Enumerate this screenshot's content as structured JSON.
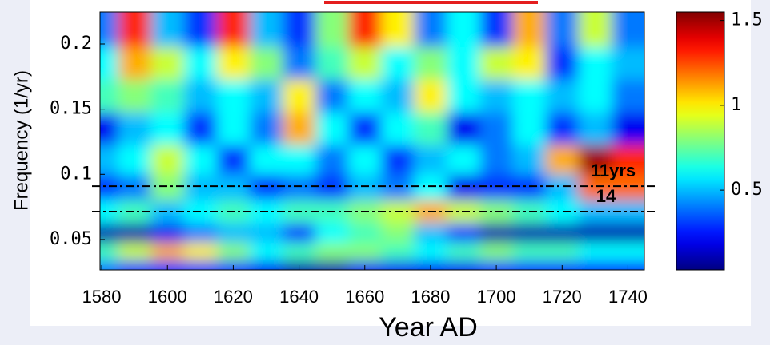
{
  "chart_data": {
    "type": "heatmap",
    "colormap": "jet",
    "xlabel": "Year AD",
    "ylabel": "Frequency  (1/yr)",
    "x": [
      1580,
      1590,
      1600,
      1610,
      1620,
      1630,
      1640,
      1650,
      1660,
      1670,
      1680,
      1690,
      1700,
      1710,
      1720,
      1730,
      1740
    ],
    "y": [
      0.21,
      0.185,
      0.16,
      0.135,
      0.11,
      0.09,
      0.07,
      0.055,
      0.04,
      0.028
    ],
    "z": [
      [
        0.4,
        1.3,
        0.5,
        0.3,
        1.3,
        0.5,
        0.3,
        0.8,
        1.3,
        1.0,
        0.4,
        0.6,
        0.3,
        1.1,
        0.4,
        0.9,
        0.4
      ],
      [
        0.6,
        1.1,
        0.9,
        0.6,
        1.0,
        0.8,
        0.4,
        0.7,
        0.9,
        0.6,
        0.8,
        0.6,
        0.9,
        1.0,
        0.3,
        0.6,
        0.5
      ],
      [
        0.7,
        0.8,
        0.7,
        0.5,
        0.6,
        0.5,
        1.0,
        0.4,
        0.6,
        0.5,
        1.0,
        0.6,
        0.5,
        0.6,
        0.5,
        0.6,
        0.4
      ],
      [
        0.2,
        0.5,
        0.6,
        0.3,
        0.6,
        0.4,
        1.1,
        0.6,
        0.3,
        0.6,
        0.7,
        0.2,
        0.4,
        0.6,
        0.3,
        0.5,
        0.2
      ],
      [
        0.5,
        0.6,
        0.9,
        0.6,
        0.3,
        0.6,
        0.6,
        0.4,
        0.6,
        0.3,
        0.5,
        0.6,
        0.4,
        0.5,
        1.1,
        1.5,
        1.3
      ],
      [
        0.3,
        0.4,
        0.8,
        0.5,
        0.5,
        0.3,
        0.4,
        0.3,
        0.5,
        0.4,
        0.6,
        0.2,
        0.3,
        0.3,
        0.5,
        1.2,
        1.2
      ],
      [
        0.6,
        0.7,
        0.5,
        0.6,
        0.7,
        0.6,
        0.7,
        0.7,
        0.8,
        0.9,
        1.1,
        0.9,
        0.8,
        0.7,
        0.6,
        0.5,
        0.5
      ],
      [
        0.1,
        0.1,
        0.2,
        0.4,
        0.5,
        0.5,
        0.3,
        0.6,
        0.7,
        0.8,
        0.5,
        0.3,
        0.1,
        0.1,
        0.1,
        0.1,
        0.1
      ],
      [
        0.7,
        0.9,
        1.1,
        1.0,
        0.8,
        0.6,
        0.7,
        0.8,
        0.8,
        0.7,
        0.6,
        0.7,
        0.8,
        0.7,
        0.7,
        0.6,
        0.6
      ],
      [
        0.4,
        0.3,
        0.3,
        0.3,
        0.3,
        0.2,
        0.1,
        0.1,
        0.2,
        0.2,
        0.2,
        0.2,
        0.3,
        0.3,
        0.3,
        0.3,
        0.3
      ]
    ],
    "xlim": [
      1579.5,
      1745
    ],
    "ylim": [
      0.0267,
      0.2245
    ],
    "xticks": [
      1580,
      1600,
      1620,
      1640,
      1660,
      1680,
      1700,
      1720,
      1740
    ],
    "yticks": [
      0.2,
      0.15,
      0.1,
      0.05
    ],
    "lines": [
      {
        "value": 0.0909,
        "label": "11yrs"
      },
      {
        "value": 0.0714,
        "label": "14"
      }
    ],
    "colorbar": {
      "clim": [
        0.03,
        1.55
      ],
      "ticks": [
        1.5,
        1,
        0.5
      ]
    }
  }
}
